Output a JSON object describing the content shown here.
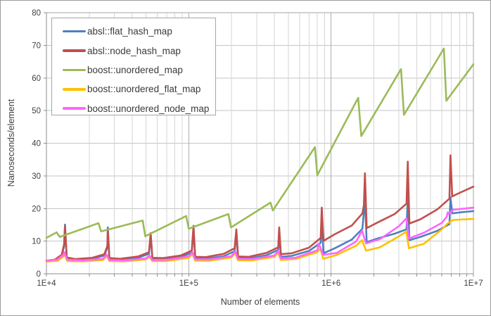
{
  "chart_data": {
    "type": "line",
    "title": "",
    "xlabel": "Number of elements",
    "ylabel": "Nanoseconds/element",
    "x_scale": "log",
    "xlim": [
      10000,
      10000000
    ],
    "ylim": [
      0,
      80
    ],
    "grid": true,
    "legend_position": "top-left",
    "y_ticks": [
      0,
      10,
      20,
      30,
      40,
      50,
      60,
      70,
      80
    ],
    "x_ticks": [
      {
        "value": 10000,
        "label": "1E+4"
      },
      {
        "value": 100000,
        "label": "1E+5"
      },
      {
        "value": 1000000,
        "label": "1E+6"
      },
      {
        "value": 10000000,
        "label": "1E+7"
      }
    ],
    "colors": {
      "gridline_h": "#c6c6c6",
      "gridline_minor": "#d6d6d6",
      "gridline_major": "#adadad",
      "plot_border": "#a6a6a6",
      "axis_line": "#8e8e8e",
      "text": "#3f3f3f"
    },
    "series": [
      {
        "name": "absl::flat_hash_map",
        "color": "#4F81BD",
        "points": [
          [
            10000,
            3.9
          ],
          [
            11500,
            4.2
          ],
          [
            12800,
            5.3
          ],
          [
            13300,
            8.5
          ],
          [
            13500,
            15.1
          ],
          [
            13900,
            4.6
          ],
          [
            16000,
            4.2
          ],
          [
            21000,
            4.6
          ],
          [
            25500,
            5.6
          ],
          [
            26800,
            8.0
          ],
          [
            27000,
            14.2
          ],
          [
            27700,
            4.4
          ],
          [
            33000,
            4.2
          ],
          [
            44000,
            4.9
          ],
          [
            52500,
            6.1
          ],
          [
            54000,
            11.8
          ],
          [
            55500,
            4.5
          ],
          [
            66000,
            4.4
          ],
          [
            88000,
            5.1
          ],
          [
            105000,
            6.5
          ],
          [
            108000,
            13.8
          ],
          [
            111000,
            4.7
          ],
          [
            132000,
            4.6
          ],
          [
            176000,
            5.4
          ],
          [
            210000,
            6.9
          ],
          [
            216000,
            12.4
          ],
          [
            222000,
            4.8
          ],
          [
            264000,
            4.7
          ],
          [
            352000,
            5.7
          ],
          [
            425000,
            7.3
          ],
          [
            432000,
            12.9
          ],
          [
            444000,
            5.2
          ],
          [
            530000,
            5.5
          ],
          [
            700000,
            7.0
          ],
          [
            845000,
            9.5
          ],
          [
            860000,
            16.5
          ],
          [
            885000,
            6.3
          ],
          [
            1060000,
            7.8
          ],
          [
            1400000,
            10.5
          ],
          [
            1660000,
            13.8
          ],
          [
            1730000,
            22.8
          ],
          [
            1780000,
            9.7
          ],
          [
            2120000,
            10.8
          ],
          [
            2800000,
            12.3
          ],
          [
            3390000,
            13.6
          ],
          [
            3460000,
            24.0
          ],
          [
            3550000,
            10.3
          ],
          [
            4240000,
            11.3
          ],
          [
            5600000,
            13.2
          ],
          [
            6780000,
            15.2
          ],
          [
            6900000,
            23.5
          ],
          [
            7100000,
            18.5
          ],
          [
            8000000,
            18.8
          ],
          [
            10000000,
            19.2
          ]
        ]
      },
      {
        "name": "absl::node_hash_map",
        "color": "#C0504D",
        "points": [
          [
            10000,
            4.0
          ],
          [
            11500,
            4.4
          ],
          [
            12800,
            5.8
          ],
          [
            13300,
            9.0
          ],
          [
            13500,
            14.5
          ],
          [
            13900,
            5.0
          ],
          [
            16000,
            4.5
          ],
          [
            21000,
            4.9
          ],
          [
            25500,
            6.0
          ],
          [
            26800,
            8.5
          ],
          [
            27000,
            13.6
          ],
          [
            27700,
            4.8
          ],
          [
            33000,
            4.6
          ],
          [
            44000,
            5.3
          ],
          [
            52500,
            6.6
          ],
          [
            54000,
            12.5
          ],
          [
            55500,
            4.9
          ],
          [
            66000,
            4.8
          ],
          [
            88000,
            5.6
          ],
          [
            105000,
            7.1
          ],
          [
            108000,
            14.7
          ],
          [
            111000,
            5.2
          ],
          [
            132000,
            5.1
          ],
          [
            176000,
            6.1
          ],
          [
            210000,
            7.8
          ],
          [
            216000,
            13.6
          ],
          [
            222000,
            5.3
          ],
          [
            264000,
            5.2
          ],
          [
            352000,
            6.4
          ],
          [
            425000,
            8.1
          ],
          [
            432000,
            14.2
          ],
          [
            444000,
            6.0
          ],
          [
            530000,
            6.3
          ],
          [
            700000,
            8.0
          ],
          [
            845000,
            11.0
          ],
          [
            860000,
            20.3
          ],
          [
            885000,
            10.1
          ],
          [
            1060000,
            12.1
          ],
          [
            1400000,
            14.8
          ],
          [
            1660000,
            18.5
          ],
          [
            1700000,
            21.0
          ],
          [
            1730000,
            30.8
          ],
          [
            1780000,
            14.0
          ],
          [
            2120000,
            15.7
          ],
          [
            2800000,
            18.3
          ],
          [
            3390000,
            21.5
          ],
          [
            3460000,
            34.4
          ],
          [
            3550000,
            15.4
          ],
          [
            4240000,
            16.7
          ],
          [
            5600000,
            19.8
          ],
          [
            6780000,
            23.0
          ],
          [
            6900000,
            36.3
          ],
          [
            7100000,
            23.7
          ],
          [
            8000000,
            24.8
          ],
          [
            10000000,
            26.7
          ]
        ]
      },
      {
        "name": "boost::unordered_map",
        "color": "#9BBB59",
        "points": [
          [
            10000,
            11.0
          ],
          [
            11800,
            12.7
          ],
          [
            12400,
            11.3
          ],
          [
            23200,
            15.5
          ],
          [
            24200,
            13.0
          ],
          [
            47500,
            16.3
          ],
          [
            49500,
            11.5
          ],
          [
            96000,
            17.7
          ],
          [
            100000,
            13.8
          ],
          [
            190000,
            18.3
          ],
          [
            198000,
            14.2
          ],
          [
            375000,
            21.8
          ],
          [
            390000,
            19.4
          ],
          [
            770000,
            38.8
          ],
          [
            800000,
            30.2
          ],
          [
            1550000,
            53.9
          ],
          [
            1630000,
            42.2
          ],
          [
            3100000,
            62.7
          ],
          [
            3250000,
            48.7
          ],
          [
            6200000,
            69.0
          ],
          [
            6450000,
            53.0
          ],
          [
            10000000,
            64.2
          ]
        ]
      },
      {
        "name": "boost::unordered_flat_map",
        "color": "#FFC000",
        "points": [
          [
            10000,
            3.7
          ],
          [
            12000,
            4.0
          ],
          [
            13100,
            5.2
          ],
          [
            13400,
            6.1
          ],
          [
            14000,
            3.9
          ],
          [
            18000,
            3.8
          ],
          [
            25000,
            4.2
          ],
          [
            26500,
            5.5
          ],
          [
            27700,
            3.9
          ],
          [
            35000,
            3.8
          ],
          [
            50000,
            4.4
          ],
          [
            53000,
            5.2
          ],
          [
            55500,
            3.9
          ],
          [
            70000,
            3.9
          ],
          [
            100000,
            4.9
          ],
          [
            106000,
            6.1
          ],
          [
            111000,
            4.0
          ],
          [
            140000,
            4.0
          ],
          [
            200000,
            5.0
          ],
          [
            212000,
            6.4
          ],
          [
            222000,
            4.1
          ],
          [
            280000,
            4.1
          ],
          [
            400000,
            5.2
          ],
          [
            424000,
            6.5
          ],
          [
            444000,
            4.2
          ],
          [
            560000,
            4.5
          ],
          [
            800000,
            6.6
          ],
          [
            840000,
            7.8
          ],
          [
            880000,
            4.6
          ],
          [
            1100000,
            5.8
          ],
          [
            1500000,
            8.6
          ],
          [
            1650000,
            10.3
          ],
          [
            1760000,
            7.1
          ],
          [
            2200000,
            8.1
          ],
          [
            3000000,
            11.5
          ],
          [
            3380000,
            12.9
          ],
          [
            3520000,
            7.8
          ],
          [
            4500000,
            9.2
          ],
          [
            6000000,
            13.6
          ],
          [
            6550000,
            15.3
          ],
          [
            6800000,
            15.8
          ],
          [
            7200000,
            16.5
          ],
          [
            10000000,
            16.8
          ]
        ]
      },
      {
        "name": "boost::unordered_node_map",
        "color": "#FF66FF",
        "points": [
          [
            10000,
            4.0
          ],
          [
            12000,
            4.4
          ],
          [
            13100,
            5.8
          ],
          [
            13400,
            6.6
          ],
          [
            14000,
            4.3
          ],
          [
            18000,
            4.1
          ],
          [
            25000,
            4.6
          ],
          [
            26500,
            5.9
          ],
          [
            27700,
            4.2
          ],
          [
            35000,
            4.1
          ],
          [
            50000,
            4.7
          ],
          [
            53000,
            5.6
          ],
          [
            55500,
            4.2
          ],
          [
            70000,
            4.3
          ],
          [
            100000,
            5.3
          ],
          [
            106000,
            6.6
          ],
          [
            111000,
            4.4
          ],
          [
            140000,
            4.4
          ],
          [
            200000,
            5.4
          ],
          [
            212000,
            6.9
          ],
          [
            222000,
            4.5
          ],
          [
            280000,
            4.5
          ],
          [
            400000,
            5.6
          ],
          [
            424000,
            7.0
          ],
          [
            444000,
            4.7
          ],
          [
            560000,
            4.9
          ],
          [
            800000,
            7.2
          ],
          [
            820000,
            9.3
          ],
          [
            880000,
            5.8
          ],
          [
            1100000,
            6.4
          ],
          [
            1500000,
            9.9
          ],
          [
            1650000,
            13.2
          ],
          [
            1760000,
            9.3
          ],
          [
            2200000,
            10.6
          ],
          [
            3000000,
            14.6
          ],
          [
            3380000,
            17.0
          ],
          [
            3520000,
            10.8
          ],
          [
            4500000,
            12.6
          ],
          [
            6000000,
            15.6
          ],
          [
            6500000,
            17.5
          ],
          [
            6600000,
            18.8
          ],
          [
            6700000,
            18.3
          ],
          [
            7200000,
            19.6
          ],
          [
            10000000,
            20.3
          ]
        ]
      }
    ]
  }
}
